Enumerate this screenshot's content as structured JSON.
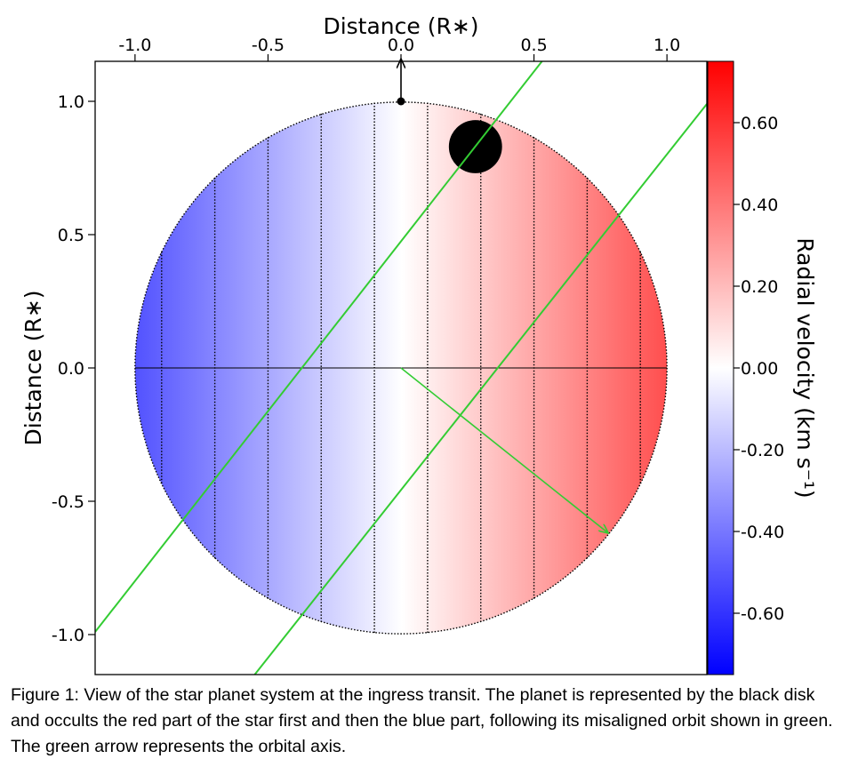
{
  "chart_data": {
    "type": "heatmap",
    "title": "",
    "xlabel": "Distance (R∗)",
    "ylabel": "Distance (R∗)",
    "xlim": [
      -1.15,
      1.15
    ],
    "ylim": [
      -1.15,
      1.15
    ],
    "x_ticks": [
      -1.0,
      -0.5,
      0.0,
      0.5,
      1.0
    ],
    "y_ticks": [
      -1.0,
      -0.5,
      0.0,
      0.5,
      1.0
    ],
    "x_tick_labels": [
      "-1.0",
      "-0.5",
      "0.0",
      "0.5",
      "1.0"
    ],
    "y_tick_labels": [
      "1.0",
      "0.5",
      "0.0",
      "-0.5",
      "-1.0"
    ],
    "x_axis_position": "top",
    "grid": false,
    "star": {
      "radius": 1.0,
      "velocity_range": [
        -0.75,
        0.75
      ],
      "velocity_gradient_axis": "x",
      "dotted_band_boundaries_x": [
        -0.9,
        -0.7,
        -0.5,
        -0.3,
        -0.1,
        0.1,
        0.3,
        0.5,
        0.7,
        0.9
      ],
      "equator_y": 0.0
    },
    "planet": {
      "x": 0.28,
      "y": 0.83,
      "radius": 0.1,
      "color": "#000000"
    },
    "orbit_lines": [
      {
        "x": [
          -1.15,
          0.53
        ],
        "y": [
          -0.99,
          1.15
        ],
        "color": "#33cc33"
      },
      {
        "x": [
          -0.55,
          1.15
        ],
        "y": [
          -1.15,
          0.99
        ],
        "color": "#33cc33"
      }
    ],
    "orbital_axis_arrow": {
      "from": [
        0.0,
        0.0
      ],
      "to": [
        0.78,
        -0.62
      ],
      "color": "#33cc33"
    },
    "stellar_axis_arrow": {
      "from": [
        0.0,
        1.0
      ],
      "to": [
        0.0,
        1.16
      ],
      "color": "#000000"
    },
    "colorbar": {
      "label": "Radial velocity (km s⁻¹)",
      "range": [
        -0.75,
        0.75
      ],
      "ticks": [
        0.6,
        0.4,
        0.2,
        0.0,
        -0.2,
        -0.4,
        -0.6
      ],
      "tick_labels": [
        "0.60",
        "0.40",
        "0.20",
        "0.00",
        "-0.20",
        "-0.40",
        "-0.60"
      ],
      "colormap": [
        "#0000ff",
        "#ffffff",
        "#ff0000"
      ]
    }
  },
  "caption": "Figure 1: View of the star planet system at the ingress transit. The planet is represented by the black disk and occults the red part of the star first and then the blue part, following its misaligned orbit shown in green. The green arrow represents the orbital axis."
}
